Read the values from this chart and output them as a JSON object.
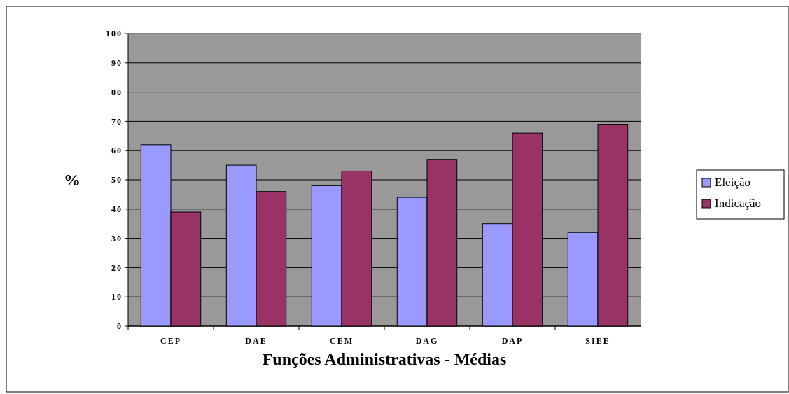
{
  "chart_data": {
    "type": "bar",
    "xlabel": "Funções Administrativas - Médias",
    "ylabel": "%",
    "categories": [
      "CEP",
      "DAE",
      "CEM",
      "DAG",
      "DAP",
      "SIEE"
    ],
    "series": [
      {
        "name": "Eleição",
        "color": "#9999ff",
        "values": [
          62,
          55,
          48,
          44,
          35,
          32
        ]
      },
      {
        "name": "Indicação",
        "color": "#993366",
        "values": [
          39,
          46,
          53,
          57,
          66,
          69
        ]
      }
    ],
    "ylim": [
      0,
      100
    ],
    "yticks": [
      0,
      10,
      20,
      30,
      40,
      50,
      60,
      70,
      80,
      90,
      100
    ],
    "grid": "y",
    "legend": "right"
  }
}
